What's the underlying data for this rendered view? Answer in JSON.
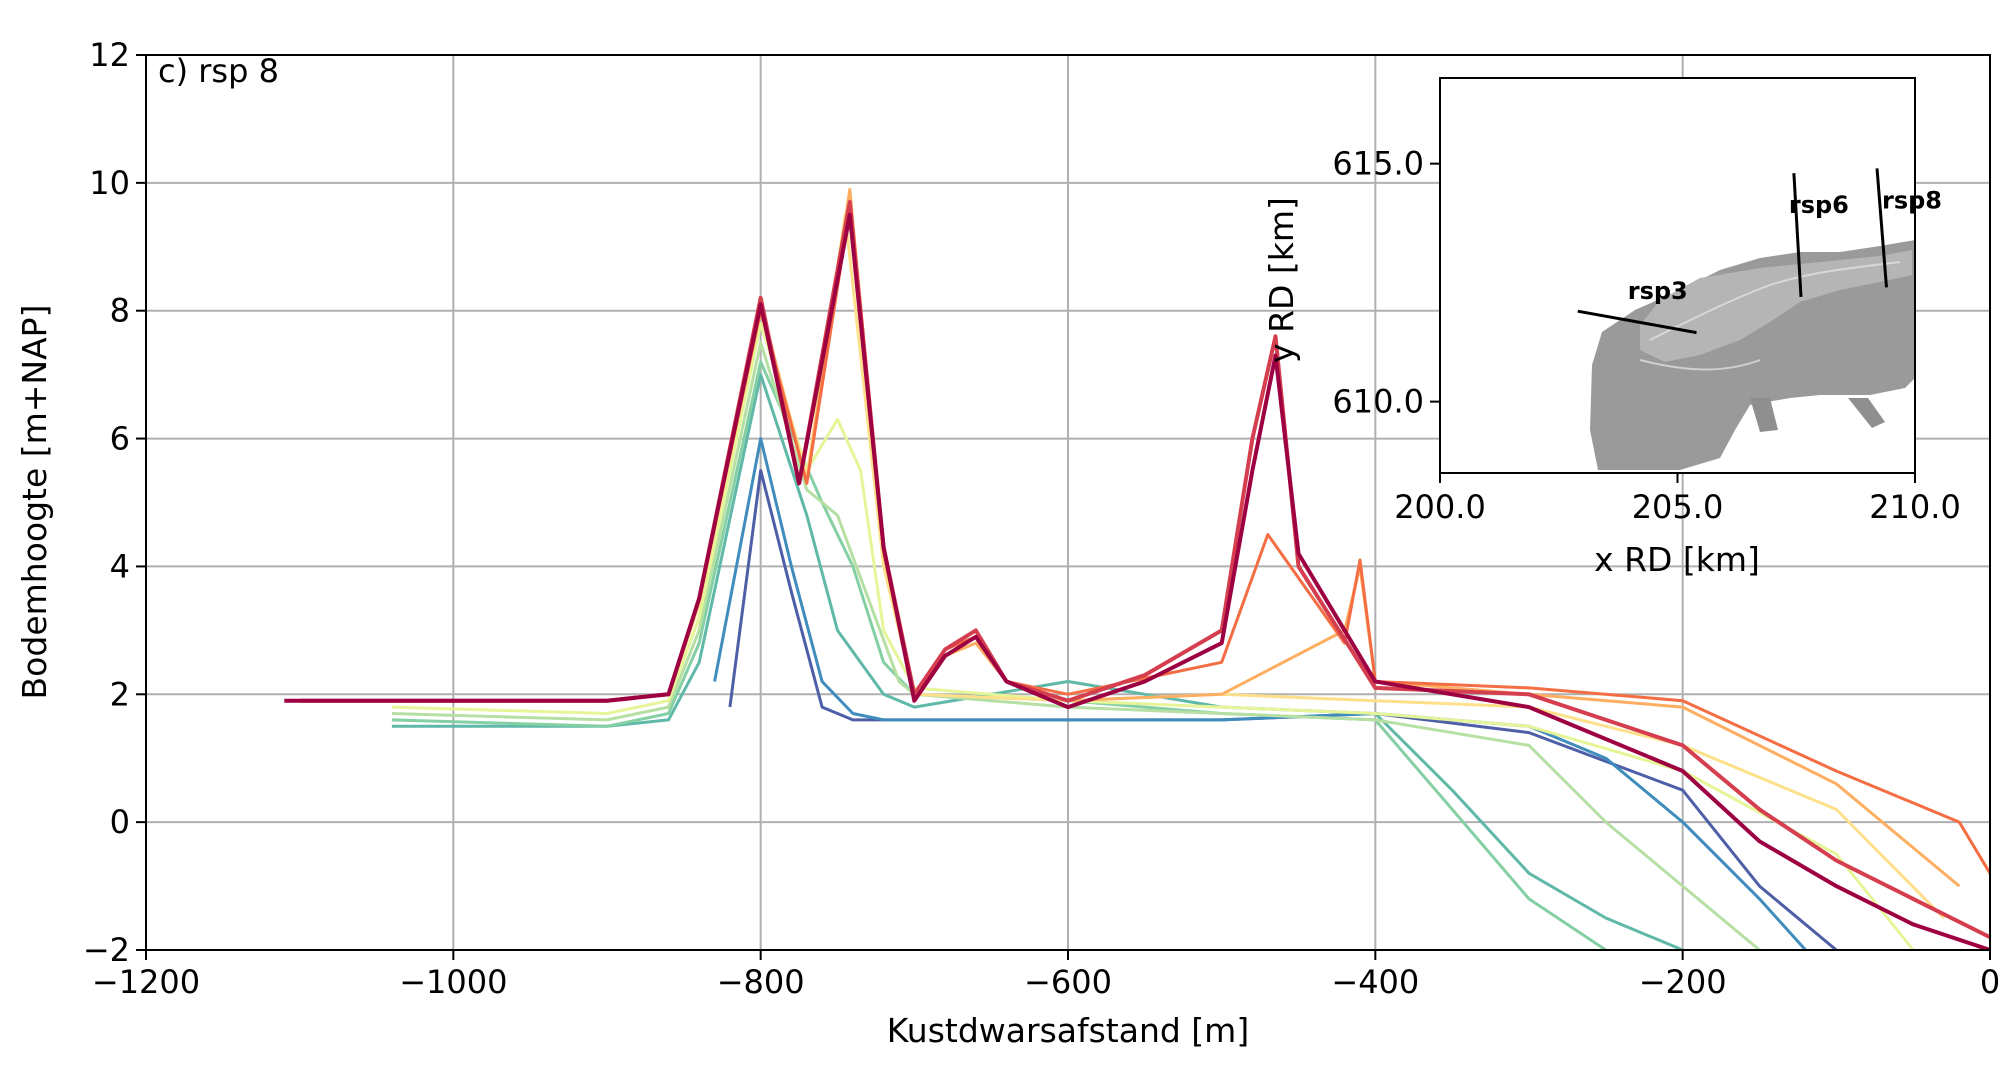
{
  "chart_data": [
    {
      "type": "line",
      "panel_label": "c) rsp 8",
      "xlabel": "Kustdwarsafstand [m]",
      "ylabel": "Bodemhoogte [m+NAP]",
      "xlim": [
        -1200,
        0
      ],
      "ylim": [
        -2,
        12
      ],
      "xticks": [
        -1200,
        -1000,
        -800,
        -600,
        -400,
        -200,
        0
      ],
      "xtick_labels": [
        "−1200",
        "−1000",
        "−800",
        "−600",
        "−400",
        "−200",
        "0"
      ],
      "yticks": [
        -2,
        0,
        2,
        4,
        6,
        8,
        10,
        12
      ],
      "ytick_labels": [
        "−2",
        "0",
        "2",
        "4",
        "6",
        "8",
        "10",
        "12"
      ],
      "grid": true,
      "colormap": [
        "#3d4fa1",
        "#3288bd",
        "#66c2a5",
        "#abdda4",
        "#e6f598",
        "#fee08b",
        "#fdae61",
        "#f46d43",
        "#d53e4f",
        "#9e0142"
      ],
      "series": [
        {
          "color": "#4e5fa8",
          "x": [
            -820,
            -800,
            -780,
            -760,
            -740,
            -720,
            -700,
            -600,
            -500,
            -400,
            -300,
            -200,
            -150,
            -100
          ],
          "y": [
            1.8,
            5.5,
            3.6,
            1.8,
            1.6,
            1.6,
            1.6,
            1.6,
            1.6,
            1.7,
            1.4,
            0.5,
            -1.0,
            -2.0
          ]
        },
        {
          "color": "#3f8cbd",
          "x": [
            -830,
            -800,
            -780,
            -760,
            -740,
            -720,
            -700,
            -600,
            -500,
            -400,
            -300,
            -250,
            -200,
            -150,
            -120
          ],
          "y": [
            2.2,
            6.0,
            4.0,
            2.2,
            1.7,
            1.6,
            1.6,
            1.6,
            1.6,
            1.7,
            1.5,
            1.0,
            0.0,
            -1.2,
            -2.0
          ]
        },
        {
          "color": "#5fb8a8",
          "x": [
            -1040,
            -900,
            -860,
            -840,
            -800,
            -770,
            -750,
            -720,
            -700,
            -600,
            -500,
            -400,
            -350,
            -300,
            -250,
            -200
          ],
          "y": [
            1.5,
            1.5,
            1.6,
            2.5,
            7.0,
            4.8,
            3.0,
            2.0,
            1.8,
            2.2,
            1.8,
            1.7,
            0.5,
            -0.8,
            -1.5,
            -2.0
          ]
        },
        {
          "color": "#84cfa4",
          "x": [
            -1040,
            -900,
            -860,
            -840,
            -800,
            -760,
            -740,
            -720,
            -700,
            -600,
            -500,
            -400,
            -350,
            -300,
            -250
          ],
          "y": [
            1.6,
            1.5,
            1.7,
            2.8,
            7.2,
            5.0,
            4.0,
            2.5,
            2.0,
            1.9,
            1.7,
            1.6,
            0.2,
            -1.2,
            -2.0
          ]
        },
        {
          "color": "#b6e0a3",
          "x": [
            -1040,
            -900,
            -860,
            -840,
            -800,
            -770,
            -750,
            -730,
            -710,
            -700,
            -600,
            -500,
            -400,
            -300,
            -250,
            -200,
            -150
          ],
          "y": [
            1.7,
            1.6,
            1.8,
            3.0,
            7.5,
            5.2,
            4.8,
            3.5,
            2.2,
            2.0,
            1.8,
            1.7,
            1.6,
            1.2,
            0.0,
            -1.0,
            -2.0
          ]
        },
        {
          "color": "#e6f598",
          "x": [
            -1040,
            -900,
            -860,
            -840,
            -800,
            -770,
            -750,
            -735,
            -720,
            -700,
            -600,
            -500,
            -400,
            -300,
            -200,
            -100,
            -50
          ],
          "y": [
            1.8,
            1.7,
            1.9,
            3.2,
            7.8,
            5.5,
            6.3,
            5.5,
            3.0,
            2.1,
            1.9,
            1.8,
            1.7,
            1.5,
            0.8,
            -0.5,
            -2.0
          ]
        },
        {
          "color": "#fee08b",
          "x": [
            -1100,
            -900,
            -860,
            -840,
            -800,
            -770,
            -745,
            -720,
            -700,
            -600,
            -500,
            -400,
            -300,
            -200,
            -100,
            -30
          ],
          "y": [
            1.9,
            1.9,
            2.0,
            3.4,
            8.0,
            5.4,
            9.5,
            4.0,
            2.0,
            1.9,
            2.0,
            1.9,
            1.8,
            1.2,
            0.2,
            -1.5
          ]
        },
        {
          "color": "#fdae61",
          "x": [
            -1100,
            -900,
            -860,
            -840,
            -800,
            -770,
            -742,
            -720,
            -700,
            -680,
            -660,
            -640,
            -600,
            -500,
            -420,
            -410,
            -400,
            -300,
            -200,
            -100,
            -20
          ],
          "y": [
            1.9,
            1.9,
            2.0,
            3.5,
            8.1,
            5.3,
            9.9,
            4.2,
            2.0,
            2.6,
            2.8,
            2.2,
            1.9,
            2.0,
            3.0,
            4.0,
            2.2,
            2.0,
            1.8,
            0.6,
            -1.0
          ]
        },
        {
          "color": "#f46d43",
          "x": [
            -1100,
            -900,
            -860,
            -840,
            -800,
            -770,
            -742,
            -720,
            -700,
            -680,
            -660,
            -640,
            -600,
            -500,
            -470,
            -420,
            -410,
            -400,
            -300,
            -200,
            -100,
            -20,
            0
          ],
          "y": [
            1.9,
            1.9,
            2.0,
            3.5,
            8.0,
            5.3,
            9.6,
            4.3,
            2.0,
            2.7,
            2.9,
            2.2,
            2.0,
            2.5,
            4.5,
            2.8,
            4.1,
            2.2,
            2.1,
            1.9,
            0.8,
            0.0,
            -0.8
          ]
        },
        {
          "color": "#d53e4f",
          "x": [
            -1100,
            -900,
            -860,
            -840,
            -800,
            -775,
            -742,
            -720,
            -700,
            -680,
            -660,
            -640,
            -600,
            -550,
            -500,
            -480,
            -465,
            -450,
            -400,
            -300,
            -200,
            -150,
            -100,
            -50,
            0
          ],
          "y": [
            1.9,
            1.9,
            2.0,
            3.5,
            8.2,
            5.3,
            9.7,
            4.3,
            2.0,
            2.7,
            3.0,
            2.2,
            1.9,
            2.3,
            3.0,
            6.0,
            7.6,
            4.0,
            2.1,
            2.0,
            1.2,
            0.2,
            -0.6,
            -1.2,
            -1.8
          ]
        },
        {
          "color": "#9e0142",
          "x": [
            -1110,
            -900,
            -860,
            -840,
            -800,
            -775,
            -742,
            -720,
            -700,
            -680,
            -660,
            -640,
            -600,
            -550,
            -500,
            -480,
            -465,
            -450,
            -400,
            -300,
            -200,
            -150,
            -100,
            -50,
            0
          ],
          "y": [
            1.9,
            1.9,
            2.0,
            3.5,
            8.1,
            5.3,
            9.5,
            4.3,
            1.9,
            2.6,
            2.9,
            2.2,
            1.8,
            2.2,
            2.8,
            5.5,
            7.3,
            4.2,
            2.2,
            1.8,
            0.8,
            -0.3,
            -1.0,
            -1.6,
            -2.0
          ]
        }
      ]
    },
    {
      "type": "map",
      "xlabel": "x RD [km]",
      "ylabel": "y RD [km]",
      "xlim": [
        200.0,
        210.0
      ],
      "ylim": [
        608.5,
        616.8
      ],
      "xticks": [
        200.0,
        205.0,
        210.0
      ],
      "xtick_labels": [
        "200.0",
        "205.0",
        "210.0"
      ],
      "yticks": [
        610.0,
        615.0
      ],
      "ytick_labels": [
        "610.0",
        "615.0"
      ],
      "transects": [
        {
          "name": "rsp3",
          "x": [
            202.9,
            205.4
          ],
          "y": [
            611.9,
            611.45
          ]
        },
        {
          "name": "rsp6",
          "x": [
            207.45,
            207.6
          ],
          "y": [
            614.8,
            612.2
          ]
        },
        {
          "name": "rsp8",
          "x": [
            209.2,
            209.4
          ],
          "y": [
            614.9,
            612.4
          ]
        }
      ],
      "island_color": "#9a9a9a"
    }
  ]
}
